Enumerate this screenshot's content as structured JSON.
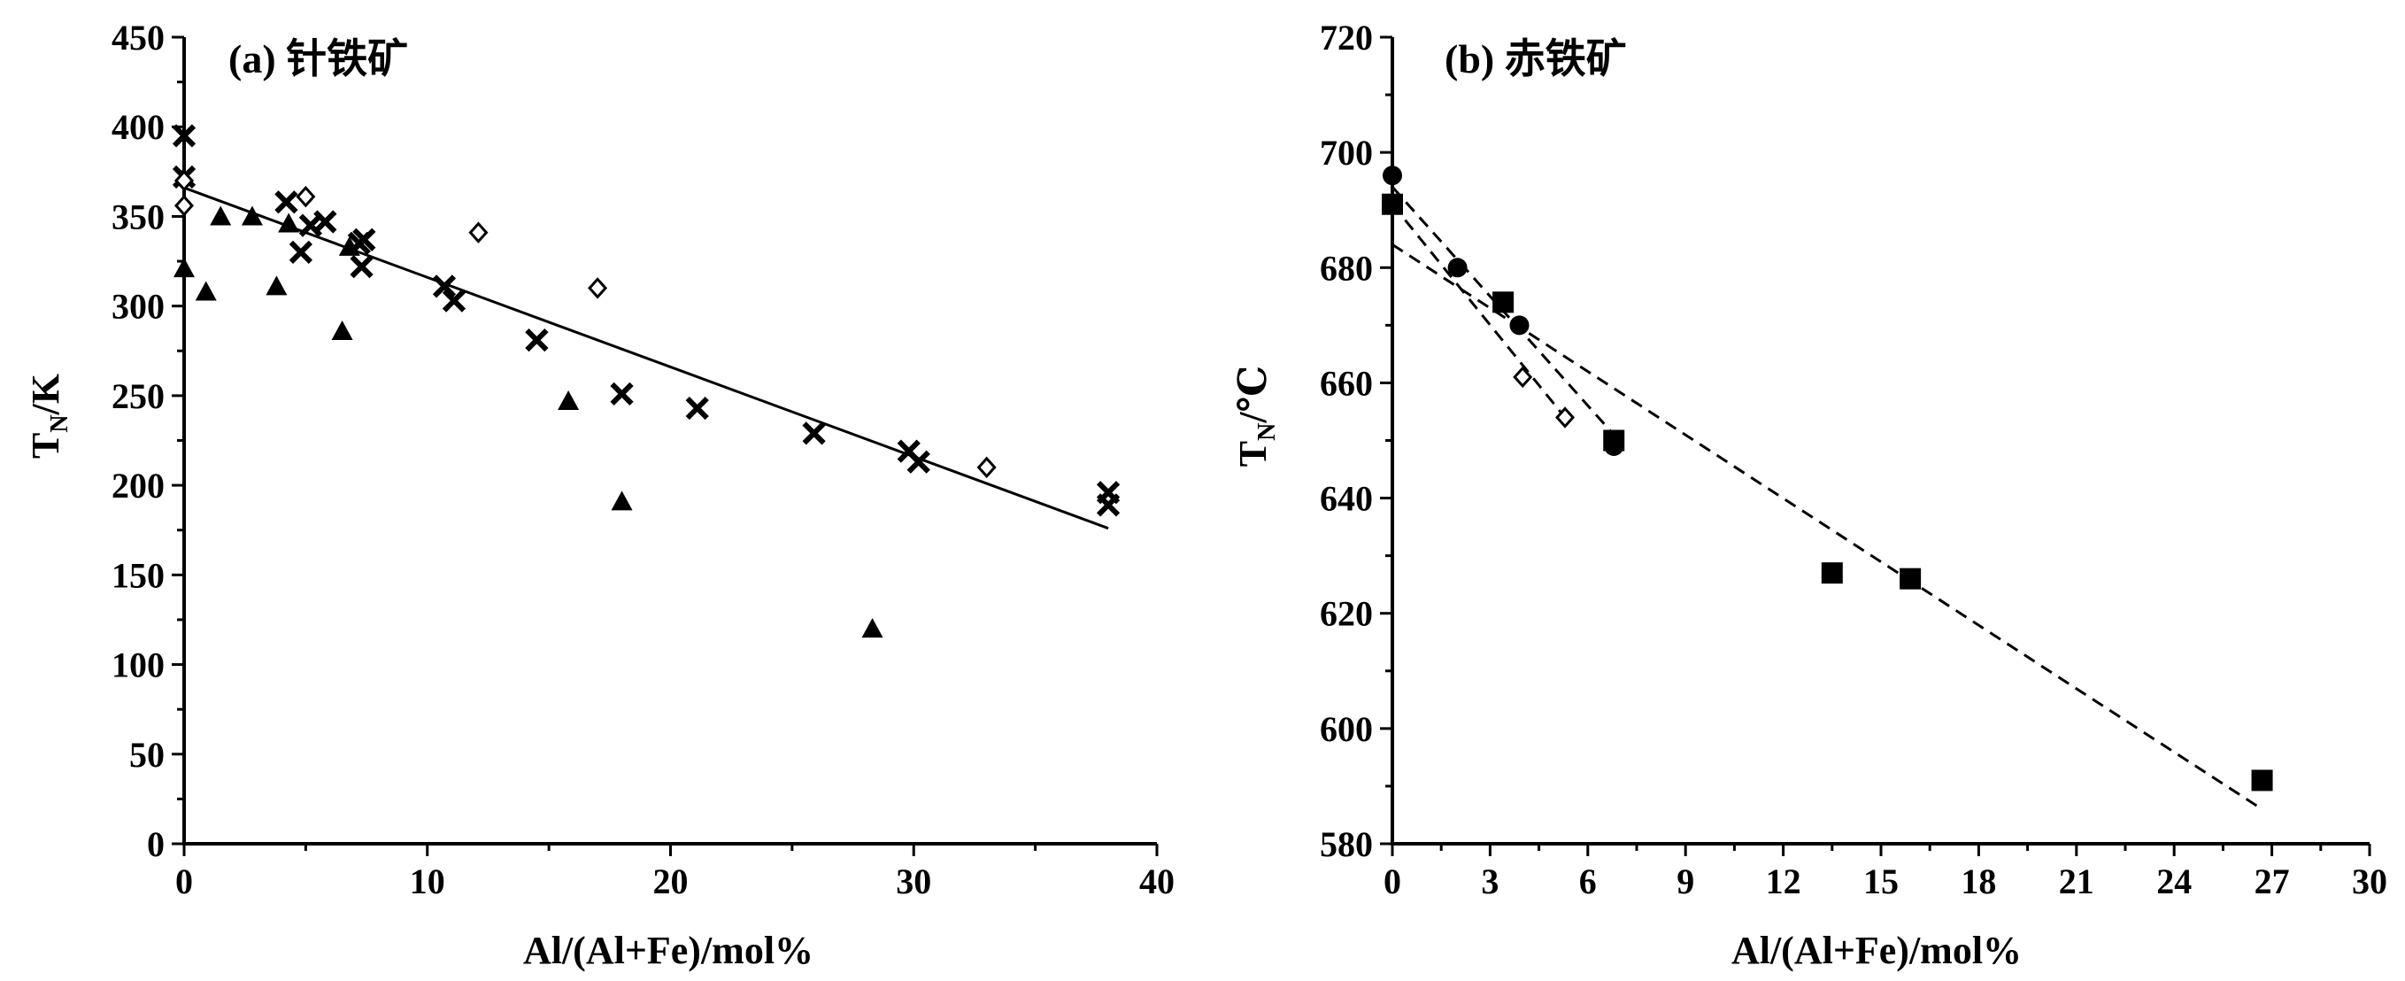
{
  "chart_data": [
    {
      "type": "scatter",
      "title": "(a) 针铁矿",
      "xlabel": "Al/(Al+Fe)/mol%",
      "ylabel_main": "T",
      "ylabel_sub": "N",
      "ylabel_unit": "/K",
      "xlim": [
        0,
        40
      ],
      "ylim": [
        0,
        450
      ],
      "xticks": [
        0,
        10,
        20,
        30,
        40
      ],
      "yticks": [
        0,
        50,
        100,
        150,
        200,
        250,
        300,
        350,
        400,
        450
      ],
      "xtick_labels": [
        "0",
        "10",
        "20",
        "30",
        "40"
      ],
      "ytick_labels": [
        "0",
        "50",
        "100",
        "150",
        "200",
        "250",
        "300",
        "350",
        "400",
        "450"
      ],
      "series": [
        {
          "name": "cross",
          "marker": "cross",
          "points": [
            [
              0,
              395
            ],
            [
              0,
              372
            ],
            [
              4.2,
              358
            ],
            [
              5.2,
              345
            ],
            [
              5.8,
              347
            ],
            [
              4.8,
              330
            ],
            [
              7.2,
              335
            ],
            [
              7.3,
              322
            ],
            [
              7.4,
              337
            ],
            [
              10.7,
              311
            ],
            [
              11.1,
              303
            ],
            [
              14.5,
              281
            ],
            [
              18,
              251
            ],
            [
              21.1,
              243
            ],
            [
              25.9,
              229
            ],
            [
              29.8,
              219
            ],
            [
              30.2,
              213
            ],
            [
              38,
              196
            ],
            [
              38,
              189
            ]
          ]
        },
        {
          "name": "triangle",
          "marker": "triangle",
          "points": [
            [
              0,
              321
            ],
            [
              0.9,
              308
            ],
            [
              1.5,
              350
            ],
            [
              2.8,
              350
            ],
            [
              3.8,
              311
            ],
            [
              4.3,
              346
            ],
            [
              6.5,
              286
            ],
            [
              6.8,
              333
            ],
            [
              15.8,
              247
            ],
            [
              18,
              191
            ],
            [
              28.3,
              120
            ]
          ]
        },
        {
          "name": "diamond",
          "marker": "diamond",
          "points": [
            [
              0,
              356
            ],
            [
              0,
              370
            ],
            [
              5,
              361
            ],
            [
              12.1,
              341
            ],
            [
              17,
              310
            ],
            [
              33,
              210
            ]
          ]
        }
      ],
      "fits": [
        {
          "style": "solid",
          "x": [
            0,
            38
          ],
          "y": [
            366,
            176
          ]
        }
      ]
    },
    {
      "type": "scatter",
      "title": "(b) 赤铁矿",
      "xlabel": "Al/(Al+Fe)/mol%",
      "ylabel_main": "T",
      "ylabel_sub": "N",
      "ylabel_unit": "/℃",
      "xlim": [
        0,
        30
      ],
      "ylim": [
        580,
        720
      ],
      "xticks": [
        0,
        3,
        6,
        9,
        12,
        15,
        18,
        21,
        24,
        27,
        30
      ],
      "yticks": [
        580,
        600,
        620,
        640,
        660,
        680,
        700,
        720
      ],
      "xtick_labels": [
        "0",
        "3",
        "6",
        "9",
        "12",
        "15",
        "18",
        "21",
        "24",
        "27",
        "30"
      ],
      "ytick_labels": [
        "580",
        "600",
        "620",
        "640",
        "660",
        "680",
        "700",
        "720"
      ],
      "series": [
        {
          "name": "circle",
          "marker": "circle",
          "points": [
            [
              0,
              696
            ],
            [
              2,
              680
            ],
            [
              3.9,
              670
            ],
            [
              6.8,
              649
            ]
          ]
        },
        {
          "name": "square",
          "marker": "square",
          "points": [
            [
              0,
              691
            ],
            [
              3.4,
              674
            ],
            [
              6.8,
              650
            ],
            [
              13.5,
              627
            ],
            [
              15.9,
              626
            ],
            [
              26.7,
              591
            ]
          ]
        },
        {
          "name": "diamond",
          "marker": "diamond",
          "points": [
            [
              4,
              661
            ],
            [
              5.3,
              654
            ]
          ]
        }
      ],
      "fits": [
        {
          "style": "dashed",
          "x": [
            0,
            26.7
          ],
          "y": [
            684,
            586
          ]
        },
        {
          "style": "dashed",
          "x": [
            0,
            6.8
          ],
          "y": [
            694,
            651
          ]
        },
        {
          "style": "dashed",
          "x": [
            0,
            5.3
          ],
          "y": [
            691,
            654
          ]
        }
      ]
    }
  ]
}
